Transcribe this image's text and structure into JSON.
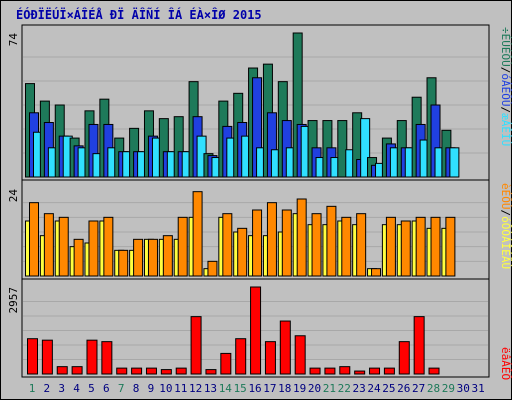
{
  "title": "ÉÓÐÏËÚÏ×ÁÎÉÅ ÐÏ ÄÎÑÍ ÎÁ ÉÀ×ÎØ 2015",
  "colors": {
    "background": "#c0c0c0",
    "visits": "#1e7a5a",
    "sites": "#2040e0",
    "files": "#30e0ff",
    "hits": "#ff8800",
    "pages": "#ffff40",
    "kbytes": "#ff0000",
    "weekend_label": "#1e7a5a",
    "weekday_label": "#0000cc"
  },
  "chart_data": [
    {
      "type": "bar",
      "panel": "top",
      "ymax_label": "74",
      "ylim": [
        0,
        74
      ],
      "legend": [
        {
          "text": "÷ÉÚÉÔÙ",
          "color": "#1e7a5a"
        },
        {
          "text": "/",
          "color": "#000000"
        },
        {
          "text": "óÁÊÔÙ",
          "color": "#2040e0"
        },
        {
          "text": "/",
          "color": "#000000"
        },
        {
          "text": "æÁÊÌÙ",
          "color": "#30e0ff"
        }
      ],
      "categories": [
        "1",
        "2",
        "3",
        "4",
        "5",
        "6",
        "7",
        "8",
        "9",
        "10",
        "11",
        "12",
        "13",
        "14",
        "15",
        "16",
        "17",
        "18",
        "19",
        "20",
        "21",
        "22",
        "23",
        "24",
        "25",
        "26",
        "27",
        "28",
        "29",
        "30",
        "31"
      ],
      "series": [
        {
          "name": "÷ÉÚÉÔÙ",
          "values": [
            48,
            39,
            37,
            20,
            34,
            40,
            20,
            25,
            34,
            30,
            31,
            49,
            12,
            39,
            43,
            56,
            58,
            49,
            74,
            29,
            29,
            29,
            33,
            10,
            20,
            29,
            41,
            51,
            24,
            0,
            0
          ]
        },
        {
          "name": "óÁÊÔÙ",
          "values": [
            33,
            28,
            21,
            16,
            27,
            27,
            13,
            13,
            21,
            13,
            13,
            31,
            11,
            26,
            28,
            51,
            33,
            29,
            27,
            15,
            15,
            0,
            9,
            6,
            17,
            15,
            27,
            37,
            15,
            0,
            0
          ]
        },
        {
          "name": "æÁÊÌÙ",
          "values": [
            23,
            15,
            21,
            15,
            12,
            15,
            13,
            13,
            20,
            13,
            13,
            21,
            10,
            20,
            21,
            15,
            14,
            15,
            26,
            10,
            10,
            14,
            30,
            7,
            15,
            15,
            19,
            15,
            15,
            0,
            0
          ]
        }
      ]
    },
    {
      "type": "bar",
      "panel": "middle",
      "ymax_label": "24",
      "ylim": [
        0,
        24
      ],
      "legend": [
        {
          "text": "èÉÔÙ",
          "color": "#ff8800"
        },
        {
          "text": "/",
          "color": "#000000"
        },
        {
          "text": "óÔÒÁÎÉÃÙ",
          "color": "#ffff40"
        }
      ],
      "categories": [
        "1",
        "2",
        "3",
        "4",
        "5",
        "6",
        "7",
        "8",
        "9",
        "10",
        "11",
        "12",
        "13",
        "14",
        "15",
        "16",
        "17",
        "18",
        "19",
        "20",
        "21",
        "22",
        "23",
        "24",
        "25",
        "26",
        "27",
        "28",
        "29",
        "30",
        "31"
      ],
      "series": [
        {
          "name": "èÉÔÙ",
          "values": [
            20,
            17,
            16,
            10,
            15,
            16,
            7,
            10,
            10,
            11,
            16,
            23,
            4,
            17,
            13,
            18,
            20,
            18,
            21,
            17,
            19,
            16,
            17,
            2,
            16,
            15,
            16,
            16,
            16,
            0,
            0
          ]
        },
        {
          "name": "óÔÒÁÎÉÃÙ",
          "values": [
            15,
            11,
            15,
            8,
            9,
            15,
            7,
            7,
            10,
            10,
            10,
            16,
            2,
            16,
            12,
            11,
            11,
            12,
            17,
            14,
            14,
            15,
            14,
            2,
            14,
            14,
            15,
            13,
            13,
            0,
            0
          ]
        }
      ]
    },
    {
      "type": "bar",
      "panel": "bottom",
      "ymax_label": "2957",
      "ylim": [
        0,
        2957
      ],
      "legend": [
        {
          "text": "ëâÁÊÔ",
          "color": "#ff0000"
        }
      ],
      "categories": [
        "1",
        "2",
        "3",
        "4",
        "5",
        "6",
        "7",
        "8",
        "9",
        "10",
        "11",
        "12",
        "13",
        "14",
        "15",
        "16",
        "17",
        "18",
        "19",
        "20",
        "21",
        "22",
        "23",
        "24",
        "25",
        "26",
        "27",
        "28",
        "29",
        "30",
        "31"
      ],
      "series": [
        {
          "name": "ëâÁÊÔ",
          "values": [
            1200,
            1150,
            250,
            250,
            1150,
            1100,
            200,
            200,
            200,
            150,
            200,
            1950,
            150,
            700,
            1200,
            2957,
            1100,
            1800,
            1300,
            200,
            200,
            250,
            100,
            200,
            200,
            1100,
            1950,
            200,
            0,
            0,
            0
          ]
        }
      ]
    }
  ],
  "weekend_days": [
    1,
    7,
    14,
    15,
    21,
    22,
    28,
    29
  ]
}
